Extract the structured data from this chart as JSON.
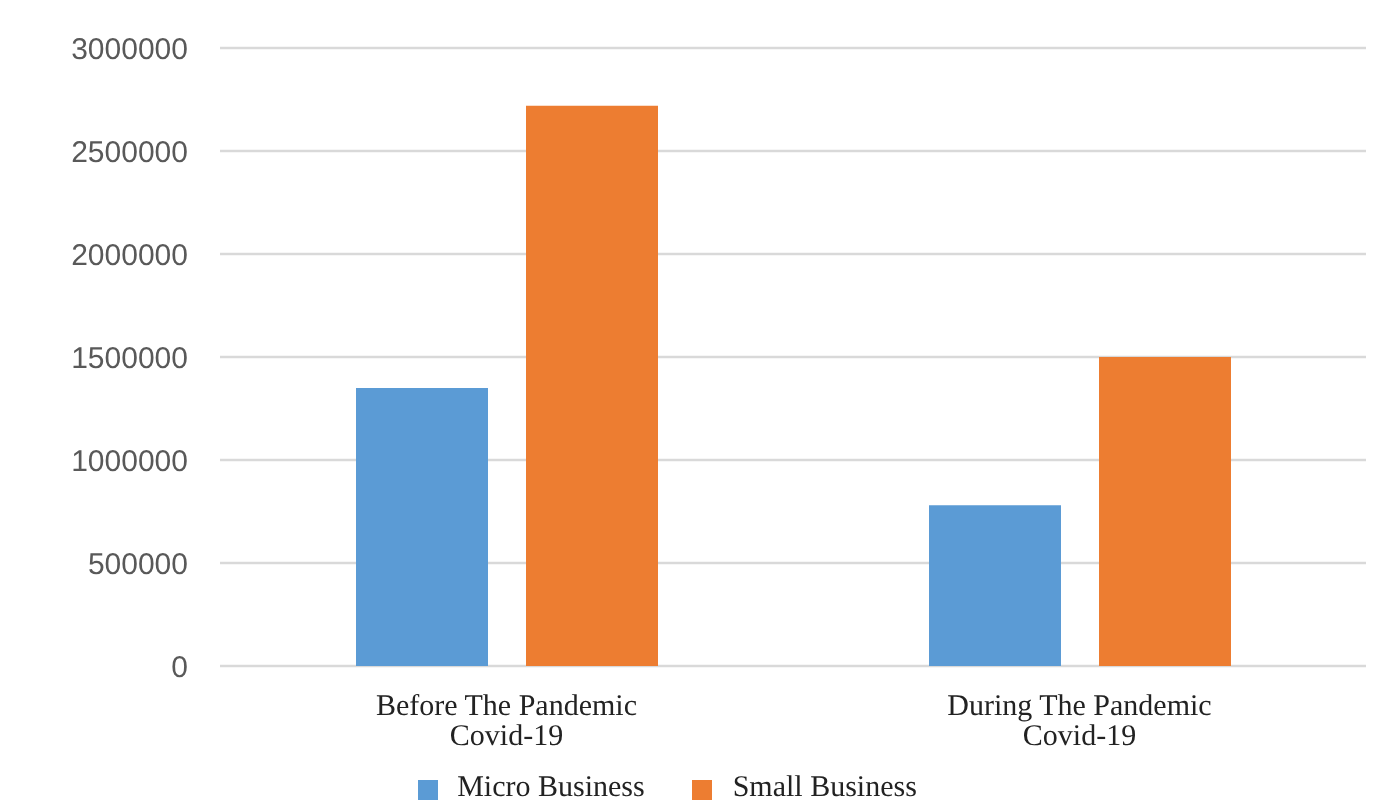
{
  "chart_data": {
    "type": "bar",
    "categories": [
      "Before The Pandemic Covid-19",
      "During The Pandemic Covid-19"
    ],
    "series": [
      {
        "name": "Micro Business",
        "color": "#5b9bd5",
        "values": [
          1350000,
          780000
        ]
      },
      {
        "name": "Small Business",
        "color": "#ed7d31",
        "values": [
          2720000,
          1500000
        ]
      }
    ],
    "ylim": [
      0,
      3000000
    ],
    "yticks": [
      0,
      500000,
      1000000,
      1500000,
      2000000,
      2500000,
      3000000
    ],
    "grid": "y",
    "legend": "bottom"
  }
}
